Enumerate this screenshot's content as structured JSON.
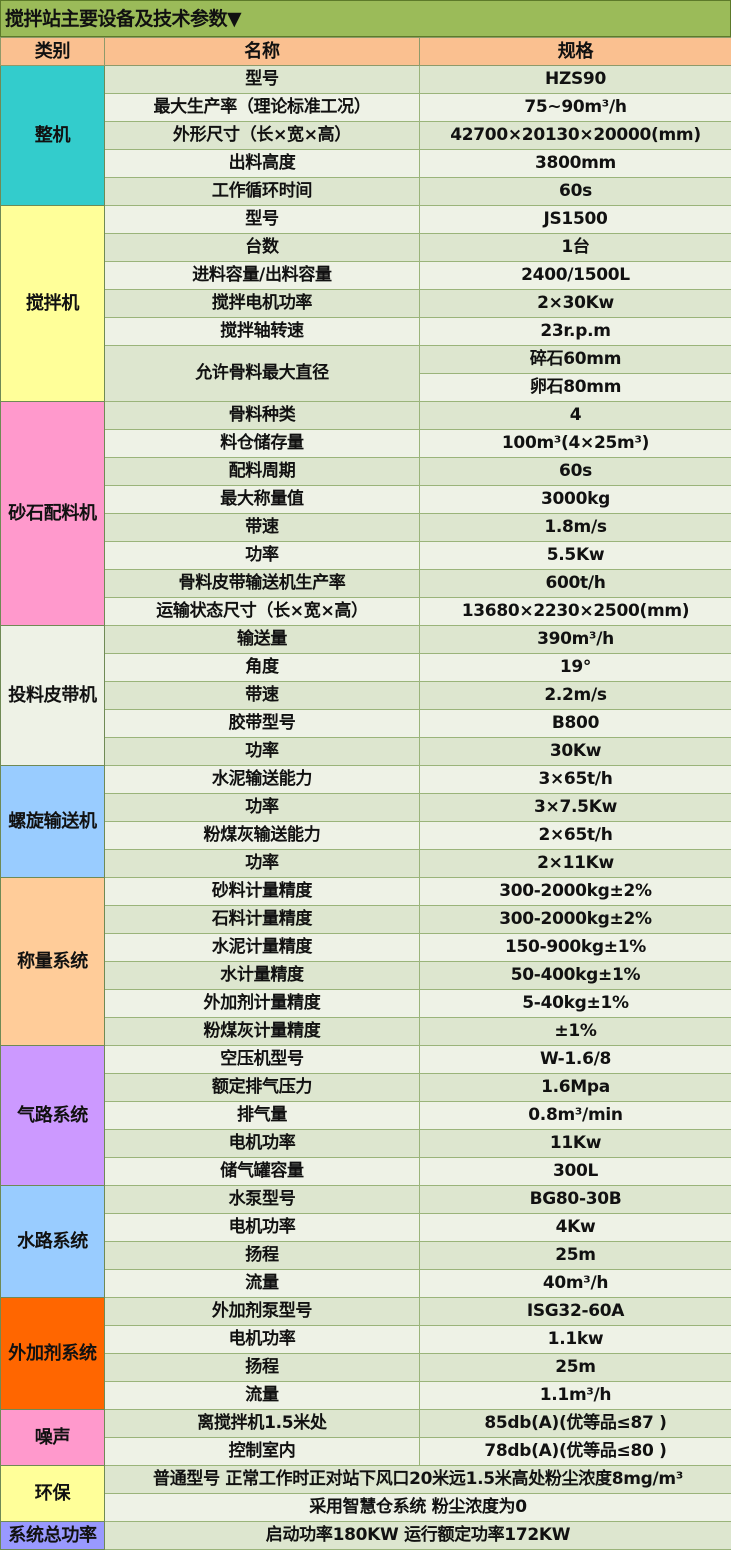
{
  "title": "搅拌站主要设备及技术参数▼",
  "header": {
    "category": "类别",
    "name": "名称",
    "spec": "规格",
    "color": "#fac090"
  },
  "title_color": "#9bbb59",
  "groups": [
    {
      "category": "整机",
      "color": "#33cccc",
      "rows": [
        {
          "name": "型号",
          "spec": "HZS90"
        },
        {
          "name": "最大生产率（理论标准工况）",
          "spec": "75~90m³/h"
        },
        {
          "name": "外形尺寸（长×宽×高）",
          "spec": "42700×20130×20000(mm)"
        },
        {
          "name": "出料高度",
          "spec": "3800mm"
        },
        {
          "name": "工作循环时间",
          "spec": "60s"
        }
      ]
    },
    {
      "category": "搅拌机",
      "color": "#ffff99",
      "rows": [
        {
          "name": "型号",
          "spec": "JS1500"
        },
        {
          "name": "台数",
          "spec": "1台"
        },
        {
          "name": "进料容量/出料容量",
          "spec": "2400/1500L"
        },
        {
          "name": "搅拌电机功率",
          "spec": "2×30Kw"
        },
        {
          "name": "搅拌轴转速",
          "spec": "23r.p.m"
        },
        {
          "name": "允许骨料最大直径",
          "spec": "碎石60mm",
          "name_span": 2
        },
        {
          "spec": "卵石80mm"
        }
      ]
    },
    {
      "category": "砂石配料机",
      "color": "#ff99cc",
      "rows": [
        {
          "name": "骨料种类",
          "spec": "4"
        },
        {
          "name": "料仓储存量",
          "spec": "100m³(4×25m³)"
        },
        {
          "name": "配料周期",
          "spec": "60s"
        },
        {
          "name": "最大称量值",
          "spec": "3000kg"
        },
        {
          "name": "带速",
          "spec": "1.8m/s"
        },
        {
          "name": "功率",
          "spec": "5.5Kw"
        },
        {
          "name": "骨料皮带输送机生产率",
          "spec": "600t/h"
        },
        {
          "name": "运输状态尺寸（长×宽×高）",
          "spec": "13680×2230×2500(mm)"
        }
      ]
    },
    {
      "category": "投料皮带机",
      "color": "#eef2e6",
      "rows": [
        {
          "name": "输送量",
          "spec": "390m³/h"
        },
        {
          "name": "角度",
          "spec": "19°"
        },
        {
          "name": "带速",
          "spec": "2.2m/s"
        },
        {
          "name": "胶带型号",
          "spec": "B800"
        },
        {
          "name": "功率",
          "spec": "30Kw"
        }
      ]
    },
    {
      "category": "螺旋输送机",
      "color": "#99ccff",
      "rows": [
        {
          "name": "水泥输送能力",
          "spec": "3×65t/h"
        },
        {
          "name": "功率",
          "spec": "3×7.5Kw"
        },
        {
          "name": "粉煤灰输送能力",
          "spec": "2×65t/h"
        },
        {
          "name": "功率",
          "spec": "2×11Kw"
        }
      ]
    },
    {
      "category": "称量系统",
      "color": "#ffcc99",
      "rows": [
        {
          "name": "砂料计量精度",
          "spec": "300-2000kg±2%"
        },
        {
          "name": "石料计量精度",
          "spec": "300-2000kg±2%"
        },
        {
          "name": "水泥计量精度",
          "spec": "150-900kg±1%"
        },
        {
          "name": "水计量精度",
          "spec": "50-400kg±1%"
        },
        {
          "name": "外加剂计量精度",
          "spec": "5-40kg±1%"
        },
        {
          "name": "粉煤灰计量精度",
          "spec": "±1%"
        }
      ]
    },
    {
      "category": "气路系统",
      "color": "#cc99ff",
      "rows": [
        {
          "name": "空压机型号",
          "spec": "W-1.6/8"
        },
        {
          "name": "额定排气压力",
          "spec": "1.6Mpa"
        },
        {
          "name": "排气量",
          "spec": "0.8m³/min"
        },
        {
          "name": "电机功率",
          "spec": "11Kw"
        },
        {
          "name": "储气罐容量",
          "spec": "300L"
        }
      ]
    },
    {
      "category": "水路系统",
      "color": "#99ccff",
      "rows": [
        {
          "name": "水泵型号",
          "spec": "BG80-30B"
        },
        {
          "name": "电机功率",
          "spec": "4Kw"
        },
        {
          "name": "扬程",
          "spec": "25m"
        },
        {
          "name": "流量",
          "spec": "40m³/h"
        }
      ]
    },
    {
      "category": "外加剂系统",
      "color": "#ff6600",
      "rows": [
        {
          "name": "外加剂泵型号",
          "spec": "ISG32-60A"
        },
        {
          "name": "电机功率",
          "spec": "1.1kw"
        },
        {
          "name": "扬程",
          "spec": "25m"
        },
        {
          "name": "流量",
          "spec": "1.1m³/h"
        }
      ]
    },
    {
      "category": "噪声",
      "color": "#ff99cc",
      "rows": [
        {
          "name": "离搅拌机1.5米处",
          "spec": "85db(A)(优等品≤87 )"
        },
        {
          "name": "控制室内",
          "spec": "78db(A)(优等品≤80 )"
        }
      ]
    },
    {
      "category": "环保",
      "color": "#ffff99",
      "rows": [
        {
          "merged": "普通型号 正常工作时正对站下风口20米远1.5米高处粉尘浓度8mg/m³"
        },
        {
          "merged": "采用智慧仓系统 粉尘浓度为0"
        }
      ]
    },
    {
      "category": "系统总功率",
      "color": "#9999ff",
      "rows": [
        {
          "merged": "启动功率180KW 运行额定功率172KW"
        }
      ]
    }
  ]
}
